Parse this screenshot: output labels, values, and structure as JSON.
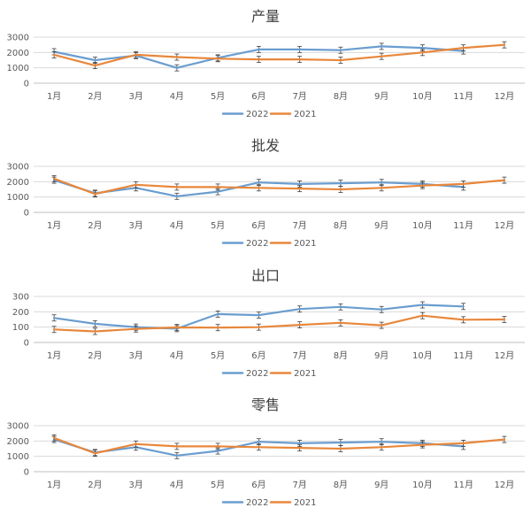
{
  "chart_data": [
    {
      "type": "line",
      "title": "产量",
      "categories": [
        "1月",
        "2月",
        "3月",
        "4月",
        "5月",
        "6月",
        "7月",
        "8月",
        "9月",
        "10月",
        "11月",
        "12月"
      ],
      "ylim": [
        0,
        3000
      ],
      "yticks": [
        0,
        1000,
        2000,
        3000
      ],
      "grid": true,
      "legend": "bottom",
      "error_bars": true,
      "series": [
        {
          "name": "2022",
          "color": "#6A9DCF",
          "values": [
            2050,
            1500,
            1800,
            1000,
            1650,
            2200,
            2200,
            2150,
            2400,
            2300,
            2100,
            null
          ]
        },
        {
          "name": "2021",
          "color": "#E8873B",
          "values": [
            1850,
            1150,
            1850,
            1700,
            1600,
            1550,
            1550,
            1500,
            1750,
            2000,
            2300,
            2500
          ]
        }
      ]
    },
    {
      "type": "line",
      "title": "批发",
      "categories": [
        "1月",
        "2月",
        "3月",
        "4月",
        "5月",
        "6月",
        "7月",
        "8月",
        "9月",
        "10月",
        "11月",
        "12月"
      ],
      "ylim": [
        0,
        3000
      ],
      "yticks": [
        0,
        1000,
        2000,
        3000
      ],
      "grid": true,
      "legend": "bottom",
      "error_bars": true,
      "series": [
        {
          "name": "2022",
          "color": "#6A9DCF",
          "values": [
            2100,
            1250,
            1600,
            1050,
            1350,
            1950,
            1850,
            1900,
            1950,
            1850,
            1650,
            null
          ]
        },
        {
          "name": "2021",
          "color": "#E8873B",
          "values": [
            2200,
            1200,
            1800,
            1650,
            1650,
            1600,
            1550,
            1500,
            1600,
            1750,
            1850,
            2100
          ]
        }
      ]
    },
    {
      "type": "line",
      "title": "出口",
      "categories": [
        "1月",
        "2月",
        "3月",
        "4月",
        "5月",
        "6月",
        "7月",
        "8月",
        "9月",
        "10月",
        "11月",
        "12月"
      ],
      "ylim": [
        0,
        300
      ],
      "yticks": [
        0,
        100,
        200,
        300
      ],
      "grid": true,
      "legend": "bottom",
      "error_bars": true,
      "series": [
        {
          "name": "2022",
          "color": "#6A9DCF",
          "values": [
            160,
            122,
            100,
            90,
            185,
            178,
            218,
            232,
            215,
            245,
            235,
            null
          ]
        },
        {
          "name": "2021",
          "color": "#E8873B",
          "values": [
            85,
            72,
            88,
            98,
            97,
            100,
            115,
            128,
            112,
            175,
            148,
            150
          ]
        }
      ]
    },
    {
      "type": "line",
      "title": "零售",
      "categories": [
        "1月",
        "2月",
        "3月",
        "4月",
        "5月",
        "6月",
        "7月",
        "8月",
        "9月",
        "10月",
        "11月",
        "12月"
      ],
      "ylim": [
        0,
        3000
      ],
      "yticks": [
        0,
        1000,
        2000,
        3000
      ],
      "grid": true,
      "legend": "bottom",
      "error_bars": true,
      "series": [
        {
          "name": "2022",
          "color": "#6A9DCF",
          "values": [
            2100,
            1250,
            1600,
            1050,
            1350,
            1950,
            1850,
            1900,
            1950,
            1850,
            1650,
            null
          ]
        },
        {
          "name": "2021",
          "color": "#E8873B",
          "values": [
            2200,
            1200,
            1800,
            1650,
            1650,
            1600,
            1550,
            1500,
            1600,
            1750,
            1850,
            2100
          ]
        }
      ]
    }
  ]
}
